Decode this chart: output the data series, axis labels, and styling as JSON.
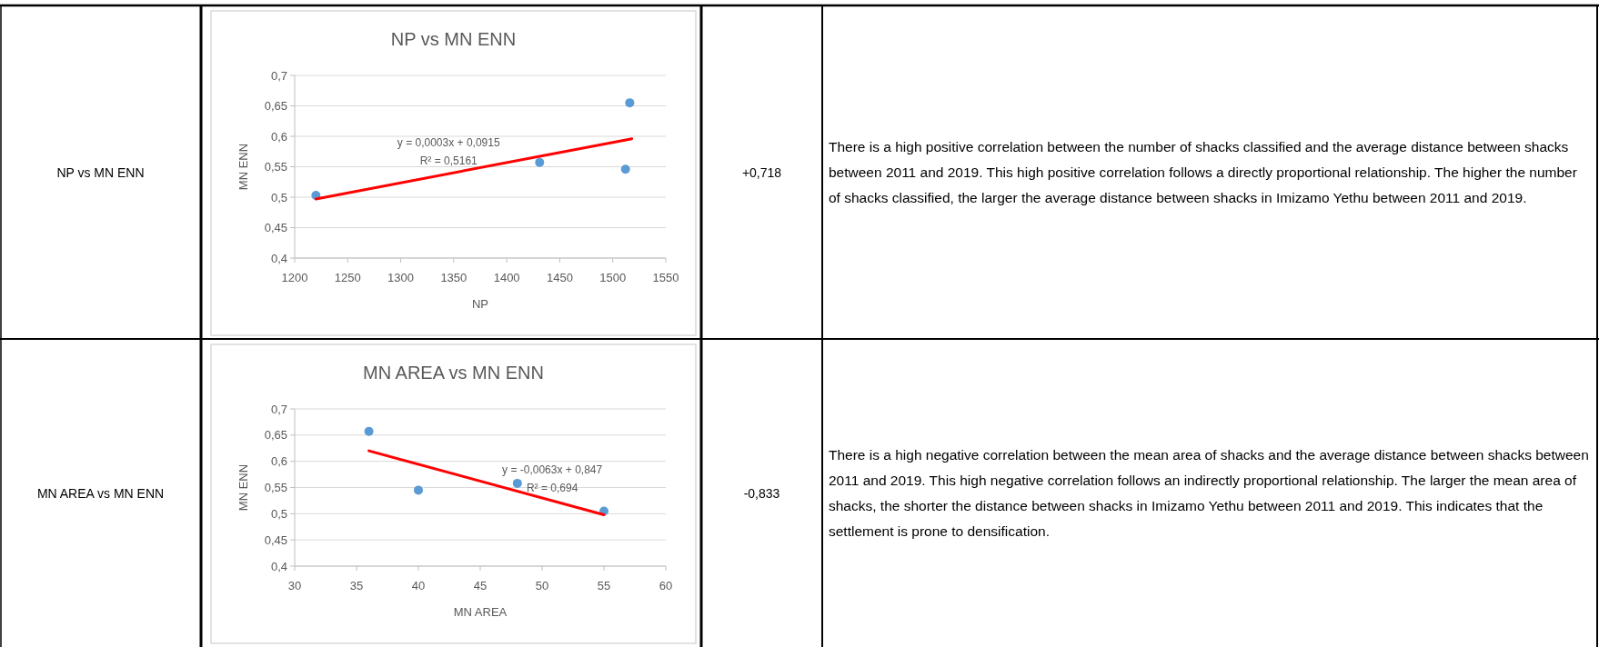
{
  "chart_data": [
    {
      "type": "other",
      "annotations": [
        "NP vs MN ENN"
      ]
    },
    {
      "type": "scatter",
      "title": "NP vs MN ENN",
      "xlabel": "NP",
      "ylabel": "MN ENN",
      "xlim": [
        1200,
        1550
      ],
      "xticks": [
        1200,
        1250,
        1300,
        1350,
        1400,
        1450,
        1500,
        1550
      ],
      "ylim": [
        0.4,
        0.7
      ],
      "yticks": [
        {
          "value": 0.4,
          "label": "0,4"
        },
        {
          "value": 0.45,
          "label": "0,45"
        },
        {
          "value": 0.5,
          "label": "0,5"
        },
        {
          "value": 0.55,
          "label": "0,55"
        },
        {
          "value": 0.6,
          "label": "0,6"
        },
        {
          "value": 0.65,
          "label": "0,65"
        },
        {
          "value": 0.7,
          "label": "0,7"
        }
      ],
      "grid": "y",
      "series": [
        {
          "type": "scatter",
          "color": "#5b9bd5",
          "marker": "circle",
          "x": [
            1220,
            1431,
            1512,
            1516
          ],
          "values": [
            0.503,
            0.557,
            0.546,
            0.655
          ]
        },
        {
          "type": "line",
          "color": "#ff0000",
          "marker": "none",
          "x": [
            1220,
            1518
          ],
          "values": [
            0.497,
            0.596
          ]
        }
      ],
      "annotations": [
        "y = 0,0003x + 0,0915",
        "R² = 0,5161"
      ]
    },
    {
      "type": "other",
      "annotations": [
        "+0,718"
      ]
    },
    {
      "type": "other",
      "annotations": [
        "There is a high positive correlation between the number of shacks classified and the average distance between shacks between 2011 and 2019. This high positive correlation follows a directly proportional relationship. The higher the number of shacks classified, the larger the average distance between shacks in Imizamo Yethu between 2011 and 2019."
      ]
    },
    {
      "type": "other",
      "annotations": [
        "MN AREA vs MN ENN"
      ]
    },
    {
      "type": "scatter",
      "title": "MN AREA vs MN ENN",
      "xlabel": "MN AREA",
      "ylabel": "MN ENN",
      "xlim": [
        30,
        60
      ],
      "xticks": [
        30,
        35,
        40,
        45,
        50,
        55,
        60
      ],
      "ylim": [
        0.4,
        0.7
      ],
      "yticks": [
        {
          "value": 0.4,
          "label": "0,4"
        },
        {
          "value": 0.45,
          "label": "0,45"
        },
        {
          "value": 0.5,
          "label": "0,5"
        },
        {
          "value": 0.55,
          "label": "0,55"
        },
        {
          "value": 0.6,
          "label": "0,6"
        },
        {
          "value": 0.65,
          "label": "0,65"
        },
        {
          "value": 0.7,
          "label": "0,7"
        }
      ],
      "grid": "y",
      "series": [
        {
          "type": "scatter",
          "color": "#5b9bd5",
          "marker": "circle",
          "x": [
            36,
            40,
            48,
            55
          ],
          "values": [
            0.657,
            0.545,
            0.558,
            0.505
          ]
        },
        {
          "type": "line",
          "color": "#ff0000",
          "marker": "none",
          "x": [
            36,
            55
          ],
          "values": [
            0.62,
            0.498
          ]
        }
      ],
      "annotations": [
        "y = -0,0063x + 0,847",
        "R² = 0,694"
      ]
    },
    {
      "type": "other",
      "annotations": [
        "-0,833"
      ]
    },
    {
      "type": "other",
      "annotations": [
        "There is a high negative correlation between the mean area of shacks and the average distance between shacks between 2011 and 2019. This high negative correlation follows an indirectly proportional relationship. The larger the mean area of shacks, the shorter the distance between shacks in Imizamo Yethu between 2011 and 2019. This indicates that the settlement is prone to densification."
      ]
    }
  ]
}
